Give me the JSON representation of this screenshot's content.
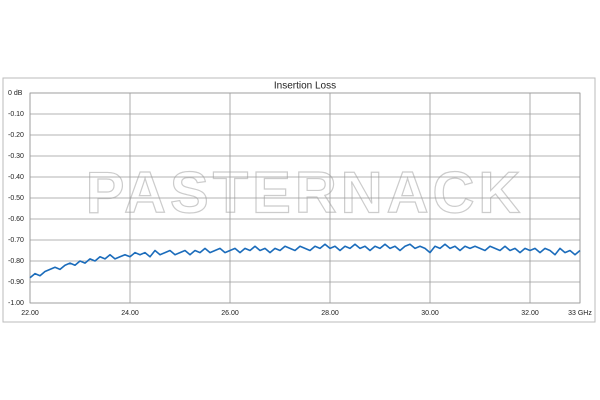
{
  "chart_data": {
    "type": "line",
    "title": "Insertion Loss",
    "watermark": "PASTERNACK",
    "x": [
      22,
      22.1,
      22.2,
      22.3,
      22.4,
      22.5,
      22.6,
      22.7,
      22.8,
      22.9,
      23,
      23.1,
      23.2,
      23.3,
      23.4,
      23.5,
      23.6,
      23.7,
      23.8,
      23.9,
      24,
      24.1,
      24.2,
      24.3,
      24.4,
      24.5,
      24.6,
      24.7,
      24.8,
      24.9,
      25,
      25.1,
      25.2,
      25.3,
      25.4,
      25.5,
      25.6,
      25.7,
      25.8,
      25.9,
      26,
      26.1,
      26.2,
      26.3,
      26.4,
      26.5,
      26.6,
      26.7,
      26.8,
      26.9,
      27,
      27.1,
      27.2,
      27.3,
      27.4,
      27.5,
      27.6,
      27.7,
      27.8,
      27.9,
      28,
      28.1,
      28.2,
      28.3,
      28.4,
      28.5,
      28.6,
      28.7,
      28.8,
      28.9,
      29,
      29.1,
      29.2,
      29.3,
      29.4,
      29.5,
      29.6,
      29.7,
      29.8,
      29.9,
      30,
      30.1,
      30.2,
      30.3,
      30.4,
      30.5,
      30.6,
      30.7,
      30.8,
      30.9,
      31,
      31.1,
      31.2,
      31.3,
      31.4,
      31.5,
      31.6,
      31.7,
      31.8,
      31.9,
      32,
      32.1,
      32.2,
      32.3,
      32.4,
      32.5,
      32.6,
      32.7,
      32.8,
      32.9,
      33
    ],
    "series": [
      {
        "color": "#1b6cbb",
        "values": [
          -0.88,
          -0.86,
          -0.87,
          -0.85,
          -0.84,
          -0.83,
          -0.84,
          -0.82,
          -0.81,
          -0.82,
          -0.8,
          -0.81,
          -0.79,
          -0.8,
          -0.78,
          -0.79,
          -0.77,
          -0.79,
          -0.78,
          -0.77,
          -0.78,
          -0.76,
          -0.77,
          -0.76,
          -0.78,
          -0.75,
          -0.77,
          -0.76,
          -0.75,
          -0.77,
          -0.76,
          -0.75,
          -0.77,
          -0.75,
          -0.76,
          -0.74,
          -0.76,
          -0.75,
          -0.74,
          -0.76,
          -0.75,
          -0.74,
          -0.76,
          -0.74,
          -0.75,
          -0.73,
          -0.75,
          -0.74,
          -0.76,
          -0.74,
          -0.75,
          -0.73,
          -0.74,
          -0.75,
          -0.73,
          -0.74,
          -0.75,
          -0.73,
          -0.74,
          -0.72,
          -0.74,
          -0.73,
          -0.75,
          -0.73,
          -0.74,
          -0.72,
          -0.74,
          -0.73,
          -0.75,
          -0.73,
          -0.74,
          -0.72,
          -0.74,
          -0.73,
          -0.75,
          -0.73,
          -0.72,
          -0.74,
          -0.73,
          -0.74,
          -0.76,
          -0.73,
          -0.74,
          -0.72,
          -0.74,
          -0.73,
          -0.75,
          -0.73,
          -0.74,
          -0.73,
          -0.74,
          -0.75,
          -0.73,
          -0.74,
          -0.75,
          -0.73,
          -0.75,
          -0.74,
          -0.76,
          -0.74,
          -0.75,
          -0.74,
          -0.76,
          -0.74,
          -0.75,
          -0.77,
          -0.74,
          -0.76,
          -0.75,
          -0.77,
          -0.75
        ]
      }
    ],
    "xlim": [
      22,
      33
    ],
    "xticks": [
      {
        "value": 22,
        "label": "22.00"
      },
      {
        "value": 24,
        "label": "24.00"
      },
      {
        "value": 26,
        "label": "26.00"
      },
      {
        "value": 28,
        "label": "28.00"
      },
      {
        "value": 30,
        "label": "30.00"
      },
      {
        "value": 32,
        "label": "32.00"
      },
      {
        "value": 33,
        "label": "33 GHz"
      }
    ],
    "ylim": [
      -1,
      0
    ],
    "yticks": [
      {
        "value": 0,
        "label": "0 dB"
      },
      {
        "value": -0.1,
        "label": "-0.10"
      },
      {
        "value": -0.2,
        "label": "-0.20"
      },
      {
        "value": -0.3,
        "label": "-0.30"
      },
      {
        "value": -0.4,
        "label": "-0.40"
      },
      {
        "value": -0.5,
        "label": "-0.50"
      },
      {
        "value": -0.6,
        "label": "-0.60"
      },
      {
        "value": -0.7,
        "label": "-0.70"
      },
      {
        "value": -0.8,
        "label": "-0.80"
      },
      {
        "value": -0.9,
        "label": "-0.90"
      },
      {
        "value": -1,
        "label": "-1.00"
      }
    ],
    "grid": true
  }
}
